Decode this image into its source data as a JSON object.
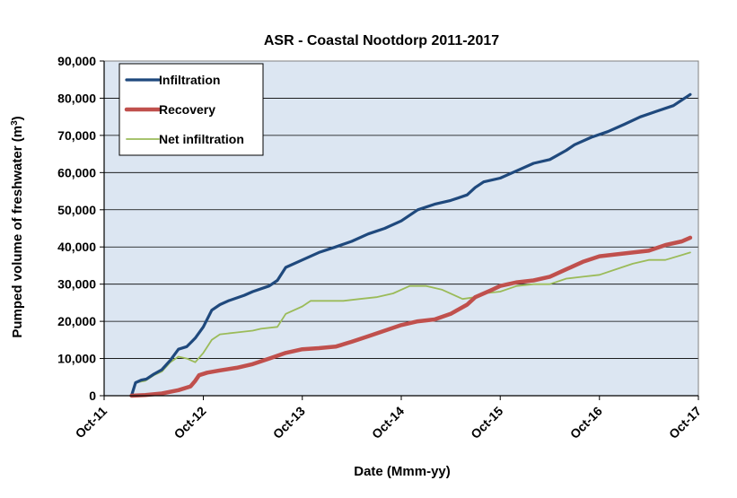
{
  "chart_data": {
    "type": "line",
    "title": "ASR - Coastal Nootdorp 2011-2017",
    "xlabel": "Date (Mmm-yy)",
    "ylabel_main": "Pumped volume of freshwater (m",
    "ylabel_sup": "3",
    "ylabel_end": ")",
    "xlim": [
      "2011-10-01",
      "2017-10-01"
    ],
    "ylim": [
      0,
      90000
    ],
    "x_ticks": [
      {
        "date": "2011-10-01",
        "label": "Oct-11"
      },
      {
        "date": "2012-10-01",
        "label": "Oct-12"
      },
      {
        "date": "2013-10-01",
        "label": "Oct-13"
      },
      {
        "date": "2014-10-01",
        "label": "Oct-14"
      },
      {
        "date": "2015-10-01",
        "label": "Oct-15"
      },
      {
        "date": "2016-10-01",
        "label": "Oct-16"
      },
      {
        "date": "2017-10-01",
        "label": "Oct-17"
      }
    ],
    "y_ticks": [
      {
        "value": 0,
        "label": "0"
      },
      {
        "value": 10000,
        "label": "10,000"
      },
      {
        "value": 20000,
        "label": "20,000"
      },
      {
        "value": 30000,
        "label": "30,000"
      },
      {
        "value": 40000,
        "label": "40,000"
      },
      {
        "value": 50000,
        "label": "50,000"
      },
      {
        "value": 60000,
        "label": "60,000"
      },
      {
        "value": 70000,
        "label": "70,000"
      },
      {
        "value": 80000,
        "label": "80,000"
      },
      {
        "value": 90000,
        "label": "90,000"
      }
    ],
    "grid": "horizontal",
    "legend_position": "top-left",
    "plot_background": "#dce6f2",
    "series": [
      {
        "name": "Infiltration",
        "color": "#1f497d",
        "width": "thick",
        "points": [
          [
            "2012-01-10",
            0
          ],
          [
            "2012-01-25",
            3500
          ],
          [
            "2012-02-15",
            4200
          ],
          [
            "2012-03-05",
            4500
          ],
          [
            "2012-04-01",
            5800
          ],
          [
            "2012-05-01",
            7000
          ],
          [
            "2012-06-01",
            9500
          ],
          [
            "2012-07-01",
            12500
          ],
          [
            "2012-08-01",
            13200
          ],
          [
            "2012-09-01",
            15500
          ],
          [
            "2012-10-01",
            18500
          ],
          [
            "2012-11-01",
            23000
          ],
          [
            "2012-12-01",
            24500
          ],
          [
            "2013-01-01",
            25500
          ],
          [
            "2013-03-01",
            27000
          ],
          [
            "2013-04-01",
            28000
          ],
          [
            "2013-06-01",
            29500
          ],
          [
            "2013-07-01",
            31000
          ],
          [
            "2013-08-01",
            34500
          ],
          [
            "2013-10-01",
            36500
          ],
          [
            "2013-12-01",
            38500
          ],
          [
            "2014-02-01",
            40000
          ],
          [
            "2014-04-01",
            41500
          ],
          [
            "2014-06-01",
            43500
          ],
          [
            "2014-08-01",
            45000
          ],
          [
            "2014-10-01",
            47000
          ],
          [
            "2014-12-01",
            50000
          ],
          [
            "2015-02-01",
            51500
          ],
          [
            "2015-04-01",
            52500
          ],
          [
            "2015-06-01",
            54000
          ],
          [
            "2015-07-01",
            56000
          ],
          [
            "2015-08-01",
            57500
          ],
          [
            "2015-10-01",
            58500
          ],
          [
            "2015-12-01",
            60500
          ],
          [
            "2016-02-01",
            62500
          ],
          [
            "2016-04-01",
            63500
          ],
          [
            "2016-06-01",
            66000
          ],
          [
            "2016-07-01",
            67500
          ],
          [
            "2016-09-01",
            69500
          ],
          [
            "2016-11-01",
            71000
          ],
          [
            "2017-01-01",
            73000
          ],
          [
            "2017-03-01",
            75000
          ],
          [
            "2017-05-01",
            76500
          ],
          [
            "2017-07-01",
            78000
          ],
          [
            "2017-09-01",
            81000
          ]
        ]
      },
      {
        "name": "Recovery",
        "color": "#c0504d",
        "width": "thicker",
        "points": [
          [
            "2012-01-10",
            0
          ],
          [
            "2012-03-01",
            200
          ],
          [
            "2012-05-01",
            600
          ],
          [
            "2012-07-01",
            1500
          ],
          [
            "2012-08-15",
            2500
          ],
          [
            "2012-09-01",
            4000
          ],
          [
            "2012-09-15",
            5500
          ],
          [
            "2012-10-15",
            6200
          ],
          [
            "2012-12-01",
            6800
          ],
          [
            "2013-02-01",
            7500
          ],
          [
            "2013-04-01",
            8500
          ],
          [
            "2013-06-01",
            10000
          ],
          [
            "2013-08-01",
            11500
          ],
          [
            "2013-10-01",
            12500
          ],
          [
            "2013-12-01",
            12800
          ],
          [
            "2014-02-01",
            13200
          ],
          [
            "2014-04-01",
            14500
          ],
          [
            "2014-06-01",
            16000
          ],
          [
            "2014-08-01",
            17500
          ],
          [
            "2014-10-01",
            19000
          ],
          [
            "2014-12-01",
            20000
          ],
          [
            "2015-02-01",
            20500
          ],
          [
            "2015-04-01",
            22000
          ],
          [
            "2015-06-01",
            24500
          ],
          [
            "2015-07-01",
            26500
          ],
          [
            "2015-09-01",
            28500
          ],
          [
            "2015-10-01",
            29500
          ],
          [
            "2015-12-01",
            30500
          ],
          [
            "2016-02-01",
            31000
          ],
          [
            "2016-04-01",
            32000
          ],
          [
            "2016-06-01",
            34000
          ],
          [
            "2016-08-01",
            36000
          ],
          [
            "2016-10-01",
            37500
          ],
          [
            "2016-12-01",
            38000
          ],
          [
            "2017-02-01",
            38500
          ],
          [
            "2017-04-01",
            39000
          ],
          [
            "2017-06-01",
            40500
          ],
          [
            "2017-08-01",
            41500
          ],
          [
            "2017-09-01",
            42500
          ]
        ]
      },
      {
        "name": "Net infiltration",
        "color": "#9bbb59",
        "width": "thin",
        "points": [
          [
            "2012-01-10",
            0
          ],
          [
            "2012-01-25",
            3500
          ],
          [
            "2012-03-01",
            4000
          ],
          [
            "2012-04-01",
            5500
          ],
          [
            "2012-05-01",
            6500
          ],
          [
            "2012-06-01",
            9000
          ],
          [
            "2012-07-01",
            10500
          ],
          [
            "2012-08-01",
            10000
          ],
          [
            "2012-09-01",
            9000
          ],
          [
            "2012-10-01",
            11500
          ],
          [
            "2012-11-01",
            15000
          ],
          [
            "2012-12-01",
            16500
          ],
          [
            "2013-02-01",
            17000
          ],
          [
            "2013-04-01",
            17500
          ],
          [
            "2013-05-01",
            18000
          ],
          [
            "2013-07-01",
            18500
          ],
          [
            "2013-08-01",
            22000
          ],
          [
            "2013-10-01",
            24000
          ],
          [
            "2013-11-01",
            25500
          ],
          [
            "2014-01-01",
            25500
          ],
          [
            "2014-03-01",
            25500
          ],
          [
            "2014-05-01",
            26000
          ],
          [
            "2014-07-01",
            26500
          ],
          [
            "2014-09-01",
            27500
          ],
          [
            "2014-11-01",
            29500
          ],
          [
            "2015-01-01",
            29500
          ],
          [
            "2015-03-01",
            28500
          ],
          [
            "2015-04-15",
            27000
          ],
          [
            "2015-05-15",
            26000
          ],
          [
            "2015-07-01",
            26500
          ],
          [
            "2015-08-01",
            27500
          ],
          [
            "2015-10-01",
            28000
          ],
          [
            "2015-12-01",
            29500
          ],
          [
            "2016-02-01",
            30000
          ],
          [
            "2016-04-01",
            30000
          ],
          [
            "2016-06-01",
            31500
          ],
          [
            "2016-08-01",
            32000
          ],
          [
            "2016-10-01",
            32500
          ],
          [
            "2016-12-01",
            34000
          ],
          [
            "2017-02-01",
            35500
          ],
          [
            "2017-04-01",
            36500
          ],
          [
            "2017-06-01",
            36500
          ],
          [
            "2017-09-01",
            38500
          ]
        ]
      }
    ]
  }
}
